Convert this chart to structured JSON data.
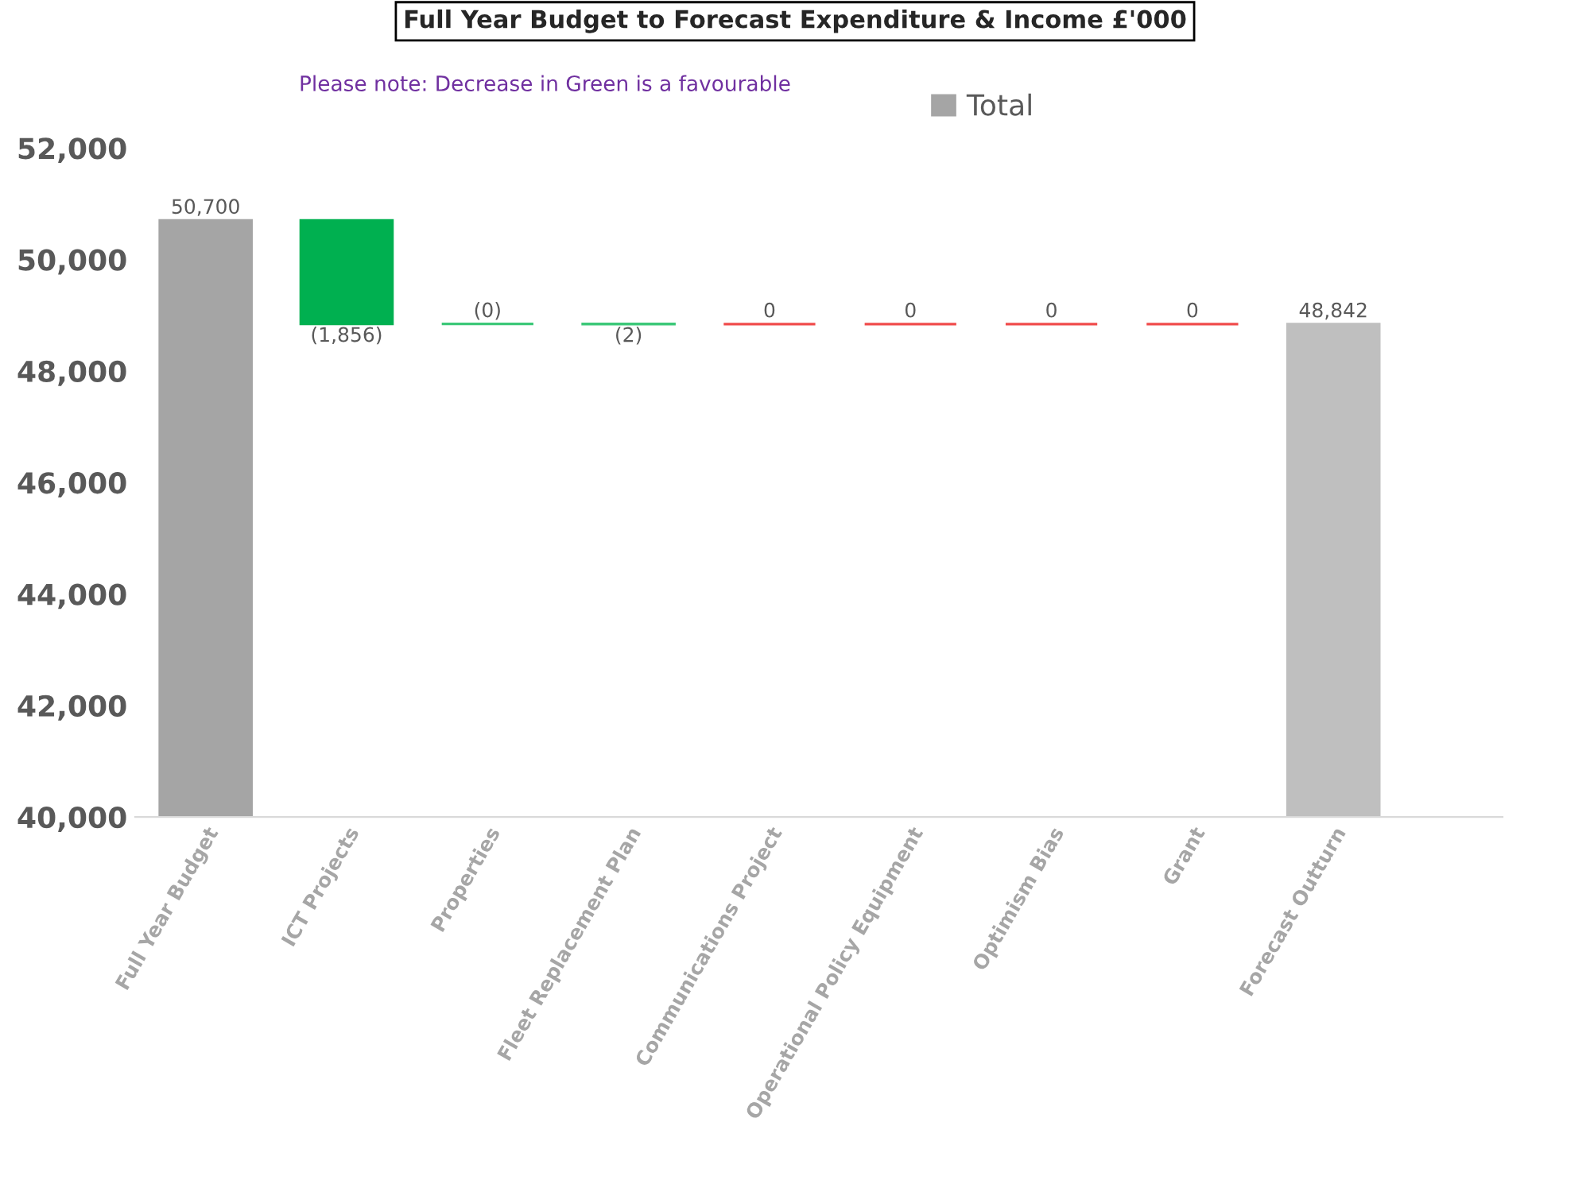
{
  "chart_data": {
    "type": "bar",
    "title": "Full Year Budget to Forecast Expenditure & Income £'000",
    "annotations": [
      "Please note: Decrease in Green is a favourable"
    ],
    "categories": [
      "Full Year Budget",
      "ICT Projects",
      "Properties",
      "Fleet Replacement Plan",
      "Communications Project",
      "Operational Policy Equipment",
      "Optimism Bias",
      "Grant",
      "Forecast Outturn"
    ],
    "series": [
      {
        "name": "Total",
        "color": "#a5a5a5",
        "colors": [
          "#a5a5a5",
          null,
          null,
          null,
          null,
          null,
          null,
          null,
          "#bfbfbf"
        ],
        "values": [
          50700,
          null,
          null,
          null,
          null,
          null,
          null,
          null,
          48842
        ],
        "value_labels": [
          "50,700",
          null,
          null,
          null,
          null,
          null,
          null,
          null,
          "48,842"
        ]
      },
      {
        "base": [
          null,
          50700,
          48844,
          48844,
          48842,
          48842,
          48842,
          48842,
          null
        ],
        "colors": [
          null,
          "#00b050",
          "#3cc878",
          "#3cc878",
          "#f04c4c",
          "#f04c4c",
          "#f04c4c",
          "#f04c4c",
          null
        ],
        "values": [
          null,
          -1856,
          0,
          -2,
          0,
          0,
          0,
          0,
          null
        ],
        "value_labels": [
          null,
          "(1,856)",
          "(0)",
          "(2)",
          "0",
          "0",
          "0",
          "0",
          null
        ]
      }
    ],
    "ylim": [
      40000,
      52000
    ],
    "yticks": [
      {
        "value": 40000,
        "label": "40,000"
      },
      {
        "value": 42000,
        "label": "42,000"
      },
      {
        "value": 44000,
        "label": "44,000"
      },
      {
        "value": 46000,
        "label": "46,000"
      },
      {
        "value": 48000,
        "label": "48,000"
      },
      {
        "value": 50000,
        "label": "50,000"
      },
      {
        "value": 52000,
        "label": "52,000"
      }
    ],
    "grid": false,
    "legend": "top"
  }
}
